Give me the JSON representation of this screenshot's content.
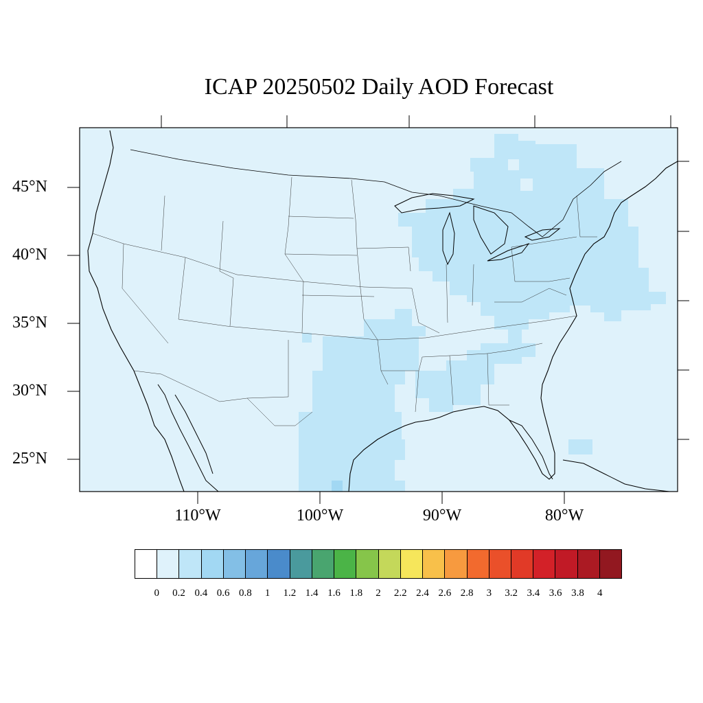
{
  "title": "ICAP 20250502 Daily AOD Forecast",
  "lat_labels": [
    "45°N",
    "40°N",
    "35°N",
    "30°N",
    "25°N"
  ],
  "lon_labels": [
    "110°W",
    "100°W",
    "90°W",
    "80°W"
  ],
  "colorbar": {
    "labels": [
      "0",
      "0.2",
      "0.4",
      "0.6",
      "0.8",
      "1",
      "1.2",
      "1.4",
      "1.6",
      "1.8",
      "2",
      "2.2",
      "2.4",
      "2.6",
      "2.8",
      "3",
      "3.2",
      "3.4",
      "3.6",
      "3.8",
      "4"
    ],
    "colors": [
      "#ffffff",
      "#dff2fb",
      "#bfe6f8",
      "#a2d8f3",
      "#83bfe6",
      "#67a6da",
      "#4a8bcb",
      "#4a9a9d",
      "#49a56f",
      "#4bb447",
      "#86c54a",
      "#c4d85a",
      "#f6e65b",
      "#f8c04a",
      "#f79a3f",
      "#f26a2e",
      "#ea502a",
      "#e13a27",
      "#d32128",
      "#c11a26",
      "#ab1a23",
      "#921820"
    ]
  },
  "map": {
    "background_color": "#dff2fb",
    "aod_elevated_color": "#bfe6f8",
    "elevated_regions": [
      "Great Lakes & Northeast",
      "Ohio Valley",
      "Mid-Atlantic offshore",
      "Texas & Oklahoma",
      "Gulf coast",
      "Southeast"
    ]
  }
}
